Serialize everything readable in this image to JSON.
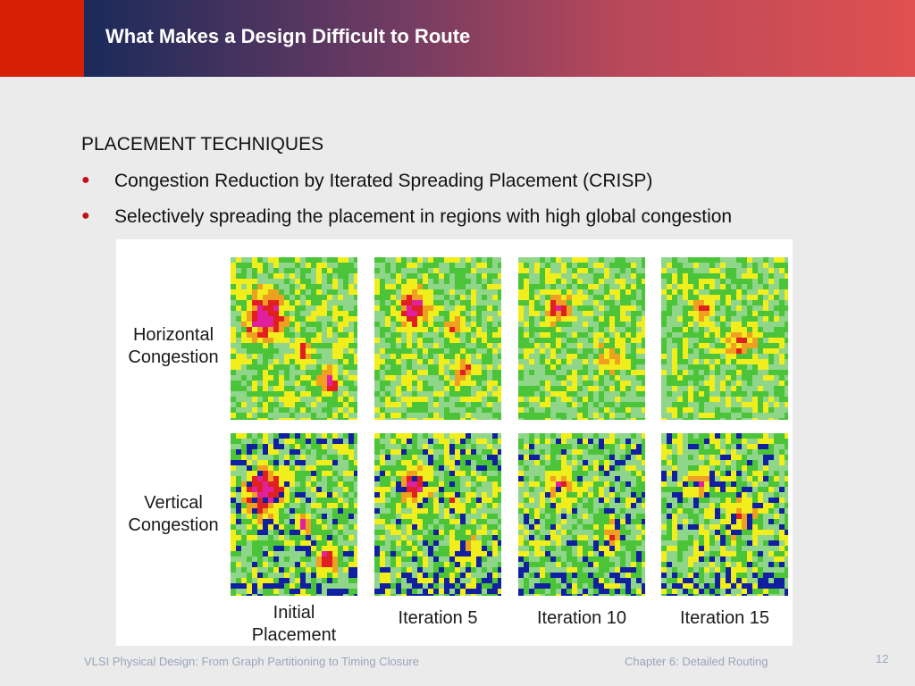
{
  "slide": {
    "title": "What Makes a Design Difficult to Route",
    "section_heading": "PLACEMENT TECHNIQUES",
    "bullets": [
      "Congestion Reduction by Iterated Spreading Placement (CRISP)",
      "Selectively spreading the placement in regions with high global congestion"
    ]
  },
  "figure": {
    "row_labels": [
      {
        "line1": "Horizontal",
        "line2": "Congestion"
      },
      {
        "line1": "Vertical",
        "line2": "Congestion"
      }
    ],
    "column_labels": [
      {
        "line1": "Initial",
        "line2": "Placement"
      },
      {
        "line1": "Iteration 5",
        "line2": ""
      },
      {
        "line1": "Iteration 10",
        "line2": ""
      },
      {
        "line1": "Iteration 15",
        "line2": ""
      }
    ],
    "colors": {
      "low": "#8fd68a",
      "green": "#4cc43a",
      "yellow": "#f2ee1c",
      "orange": "#f0a020",
      "red": "#e02020",
      "magenta": "#e020a0",
      "blue": "#1020a0"
    }
  },
  "footer": {
    "left": "VLSI Physical Design: From Graph Partitioning to Timing Closure",
    "right": "Chapter 6: Detailed Routing",
    "page": "12"
  }
}
